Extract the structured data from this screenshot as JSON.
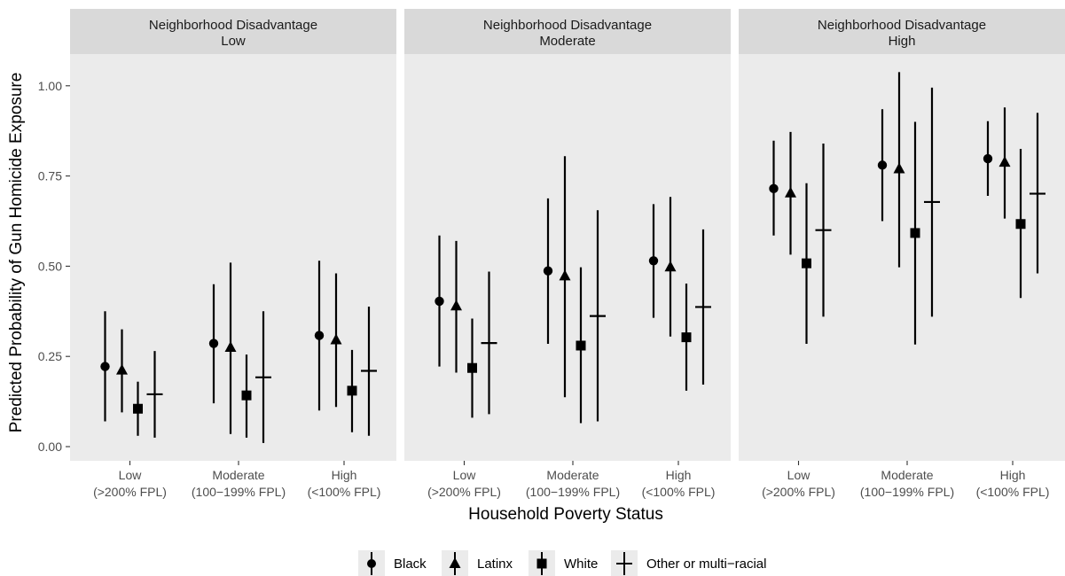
{
  "chart_data": {
    "type": "scatter",
    "subtype": "point-range facet plot",
    "xlabel": "Household Poverty Status",
    "ylabel": "Predicted Probability of Gun Homicide Exposure",
    "ylim": [
      -0.05,
      1.07
    ],
    "yticks": [
      "0.00",
      "0.25",
      "0.50",
      "0.75",
      "1.00"
    ],
    "ytick_values": [
      0,
      0.25,
      0.5,
      0.75,
      1.0
    ],
    "categories": [
      [
        "Low",
        "(>200% FPL)"
      ],
      [
        "Moderate",
        "(100−199% FPL)"
      ],
      [
        "High",
        "(<100% FPL)"
      ]
    ],
    "grid": false,
    "legend_position": "bottom",
    "legend": [
      {
        "name": "Black",
        "shape": "circle"
      },
      {
        "name": "Latinx",
        "shape": "triangle"
      },
      {
        "name": "White",
        "shape": "square"
      },
      {
        "name": "Other or multi−racial",
        "shape": "cross"
      }
    ],
    "panels": [
      {
        "title_line1": "Neighborhood Disadvantage",
        "title_line2": "Low",
        "series": [
          {
            "name": "Black",
            "points": [
              [
                0.222,
                0.07,
                0.375
              ],
              [
                0.286,
                0.12,
                0.45
              ],
              [
                0.308,
                0.1,
                0.515
              ]
            ]
          },
          {
            "name": "Latinx",
            "points": [
              [
                0.212,
                0.095,
                0.325
              ],
              [
                0.275,
                0.035,
                0.51
              ],
              [
                0.296,
                0.11,
                0.48
              ]
            ]
          },
          {
            "name": "White",
            "points": [
              [
                0.105,
                0.03,
                0.18
              ],
              [
                0.142,
                0.025,
                0.255
              ],
              [
                0.155,
                0.04,
                0.268
              ]
            ]
          },
          {
            "name": "Other or multi−racial",
            "points": [
              [
                0.145,
                0.025,
                0.265
              ],
              [
                0.192,
                0.01,
                0.375
              ],
              [
                0.21,
                0.03,
                0.388
              ]
            ]
          }
        ]
      },
      {
        "title_line1": "Neighborhood Disadvantage",
        "title_line2": "Moderate",
        "series": [
          {
            "name": "Black",
            "points": [
              [
                0.403,
                0.222,
                0.585
              ],
              [
                0.487,
                0.285,
                0.688
              ],
              [
                0.515,
                0.357,
                0.672
              ]
            ]
          },
          {
            "name": "Latinx",
            "points": [
              [
                0.39,
                0.205,
                0.57
              ],
              [
                0.473,
                0.137,
                0.805
              ],
              [
                0.498,
                0.305,
                0.692
              ]
            ]
          },
          {
            "name": "White",
            "points": [
              [
                0.218,
                0.08,
                0.355
              ],
              [
                0.28,
                0.065,
                0.497
              ],
              [
                0.303,
                0.155,
                0.452
              ]
            ]
          },
          {
            "name": "Other or multi−racial",
            "points": [
              [
                0.287,
                0.09,
                0.485
              ],
              [
                0.362,
                0.07,
                0.655
              ],
              [
                0.387,
                0.172,
                0.602
              ]
            ]
          }
        ]
      },
      {
        "title_line1": "Neighborhood Disadvantage",
        "title_line2": "High",
        "series": [
          {
            "name": "Black",
            "points": [
              [
                0.715,
                0.585,
                0.848
              ],
              [
                0.78,
                0.625,
                0.935
              ],
              [
                0.798,
                0.695,
                0.902
              ]
            ]
          },
          {
            "name": "Latinx",
            "points": [
              [
                0.703,
                0.532,
                0.872
              ],
              [
                0.77,
                0.497,
                1.038
              ],
              [
                0.788,
                0.632,
                0.94
              ]
            ]
          },
          {
            "name": "White",
            "points": [
              [
                0.508,
                0.285,
                0.73
              ],
              [
                0.592,
                0.283,
                0.9
              ],
              [
                0.617,
                0.412,
                0.825
              ]
            ]
          },
          {
            "name": "Other or multi−racial",
            "points": [
              [
                0.6,
                0.36,
                0.84
              ],
              [
                0.678,
                0.36,
                0.995
              ],
              [
                0.701,
                0.48,
                0.925
              ]
            ]
          }
        ]
      }
    ]
  }
}
